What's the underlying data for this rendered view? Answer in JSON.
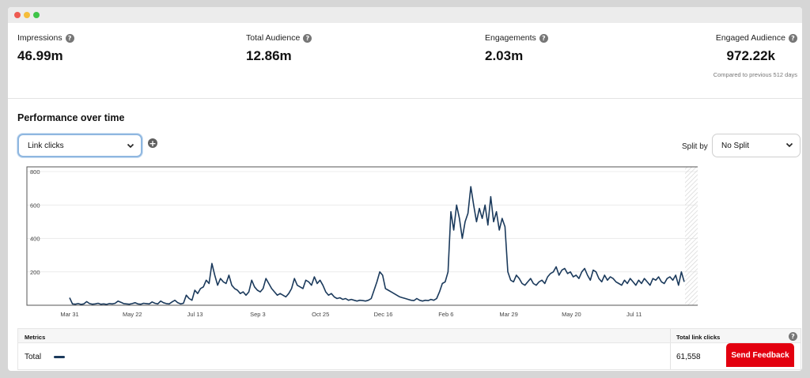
{
  "window": {
    "controls": [
      {
        "name": "close",
        "color": "#ee5b52"
      },
      {
        "name": "minimize",
        "color": "#f5bd3b"
      },
      {
        "name": "maximize",
        "color": "#3fc448"
      }
    ]
  },
  "stats": [
    {
      "label": "Impressions",
      "value": "46.99m"
    },
    {
      "label": "Total Audience",
      "value": "12.86m"
    },
    {
      "label": "Engagements",
      "value": "2.03m"
    },
    {
      "label": "Engaged Audience",
      "value": "972.22k"
    }
  ],
  "compare_text": "Compared to previous 512 days",
  "help_glyph": "?",
  "section_title": "Performance over time",
  "metric_select": {
    "value": "Link clicks"
  },
  "add_glyph": "+",
  "split": {
    "label": "Split by",
    "value": "No Split"
  },
  "chart_data": {
    "type": "line",
    "title": "",
    "xlabel": "",
    "ylabel": "",
    "ylim": [
      0,
      800
    ],
    "y_ticks": [
      200,
      400,
      600,
      800
    ],
    "x_ticks": [
      "Mar 31",
      "May 22",
      "Jul 13",
      "Sep 3",
      "Oct 25",
      "Dec 16",
      "Feb 6",
      "Mar 29",
      "May 20",
      "Jul 11"
    ],
    "grid": true,
    "line_color": "#1b3a5c",
    "series": [
      {
        "name": "Link clicks",
        "values": [
          45,
          8,
          6,
          10,
          5,
          8,
          22,
          10,
          6,
          8,
          12,
          6,
          8,
          5,
          10,
          8,
          12,
          25,
          18,
          10,
          8,
          6,
          10,
          15,
          8,
          6,
          12,
          10,
          8,
          20,
          12,
          8,
          25,
          15,
          10,
          8,
          20,
          30,
          15,
          8,
          12,
          60,
          40,
          30,
          90,
          70,
          100,
          110,
          150,
          130,
          250,
          180,
          120,
          160,
          140,
          130,
          180,
          120,
          100,
          90,
          70,
          80,
          60,
          80,
          150,
          110,
          90,
          80,
          100,
          160,
          130,
          100,
          80,
          60,
          70,
          60,
          50,
          70,
          100,
          160,
          120,
          110,
          100,
          150,
          140,
          120,
          170,
          130,
          150,
          120,
          80,
          60,
          70,
          50,
          40,
          45,
          35,
          40,
          30,
          35,
          30,
          25,
          30,
          28,
          25,
          30,
          40,
          90,
          140,
          200,
          180,
          100,
          90,
          80,
          70,
          60,
          50,
          45,
          40,
          35,
          30,
          28,
          40,
          30,
          25,
          30,
          28,
          35,
          30,
          40,
          80,
          130,
          140,
          200,
          560,
          450,
          600,
          520,
          400,
          500,
          550,
          710,
          600,
          500,
          580,
          520,
          600,
          480,
          650,
          500,
          560,
          450,
          520,
          470,
          200,
          150,
          140,
          180,
          160,
          130,
          120,
          140,
          160,
          130,
          120,
          140,
          150,
          130,
          170,
          190,
          200,
          230,
          180,
          210,
          220,
          190,
          200,
          170,
          180,
          160,
          200,
          220,
          180,
          150,
          210,
          200,
          160,
          140,
          180,
          150,
          170,
          160,
          140,
          130,
          120,
          150,
          130,
          160,
          140,
          120,
          150,
          130,
          160,
          140,
          120,
          160,
          150,
          170,
          140,
          130,
          160,
          170,
          150,
          180,
          120,
          200,
          140
        ]
      }
    ]
  },
  "metrics_table": {
    "headers": [
      "Metrics",
      "Total link clicks"
    ],
    "rows": [
      {
        "metric": "Total",
        "value": "61,558",
        "swatch": "#1b3a5c"
      }
    ]
  },
  "feedback": {
    "label": "Send Feedback",
    "color": "#e3000f"
  }
}
